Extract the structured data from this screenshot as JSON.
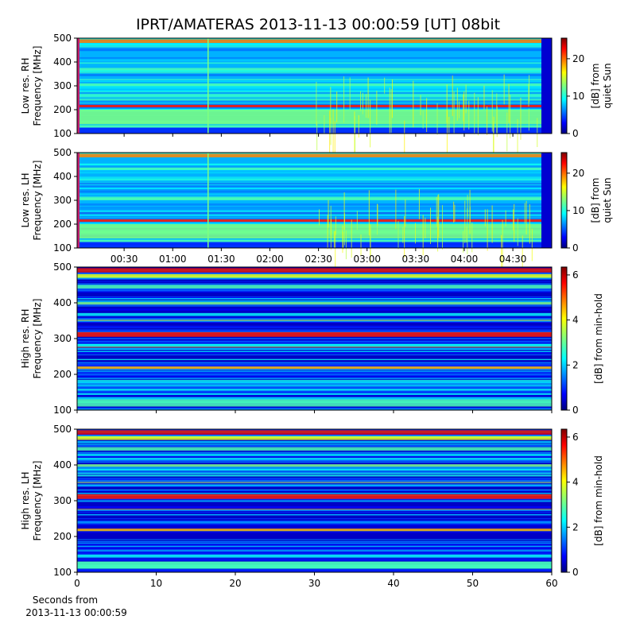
{
  "title": "IPRT/AMATERAS 2013-11-13 00:00:59 [UT]   08bit",
  "chart_data": [
    {
      "type": "heatmap",
      "ylabel": [
        "Low res. RH",
        "Frequency [MHz]"
      ],
      "ylim": [
        100,
        500
      ],
      "yticks": [
        100,
        200,
        300,
        400,
        500
      ],
      "xlim": [
        0.98,
        294
      ],
      "colorbar": {
        "label": [
          "[dB] from",
          "quiet Sun"
        ],
        "lim": [
          0,
          25.5
        ],
        "ticks": [
          0,
          10,
          20
        ]
      }
    },
    {
      "type": "heatmap",
      "ylabel": [
        "Low res. LH",
        "Frequency [MHz]"
      ],
      "ylim": [
        100,
        500
      ],
      "yticks": [
        100,
        200,
        300,
        400,
        500
      ],
      "xlim": [
        0.98,
        294
      ],
      "xticks": [
        {
          "value": 30,
          "label": "00:30"
        },
        {
          "value": 60,
          "label": "01:00"
        },
        {
          "value": 90,
          "label": "01:30"
        },
        {
          "value": 120,
          "label": "02:00"
        },
        {
          "value": 150,
          "label": "02:30"
        },
        {
          "value": 180,
          "label": "03:00"
        },
        {
          "value": 210,
          "label": "03:30"
        },
        {
          "value": 240,
          "label": "04:00"
        },
        {
          "value": 270,
          "label": "04:30"
        }
      ],
      "colorbar": {
        "label": [
          "[dB] from",
          "quiet Sun"
        ],
        "lim": [
          0,
          25.5
        ],
        "ticks": [
          0,
          10,
          20
        ]
      }
    },
    {
      "type": "heatmap",
      "ylabel": [
        "High res. RH",
        "Frequency [MHz]"
      ],
      "ylim": [
        100,
        500
      ],
      "yticks": [
        100,
        200,
        300,
        400,
        500
      ],
      "xlim": [
        0,
        60
      ],
      "colorbar": {
        "label": [
          "[dB] from min-hold"
        ],
        "lim": [
          0,
          6.35
        ],
        "ticks": [
          0,
          2,
          4,
          6
        ]
      }
    },
    {
      "type": "heatmap",
      "ylabel": [
        "High res. LH",
        "Frequency [MHz]"
      ],
      "ylim": [
        100,
        500
      ],
      "yticks": [
        100,
        200,
        300,
        400,
        500
      ],
      "xlim": [
        0,
        60
      ],
      "xticks": [
        0,
        10,
        20,
        30,
        40,
        50,
        60
      ],
      "xlabel": [
        "Seconds from",
        "2013-11-13 00:00:59"
      ],
      "colorbar": {
        "label": [
          "[dB] from min-hold"
        ],
        "lim": [
          0,
          6.35
        ],
        "ticks": [
          0,
          2,
          4,
          6
        ]
      }
    }
  ]
}
